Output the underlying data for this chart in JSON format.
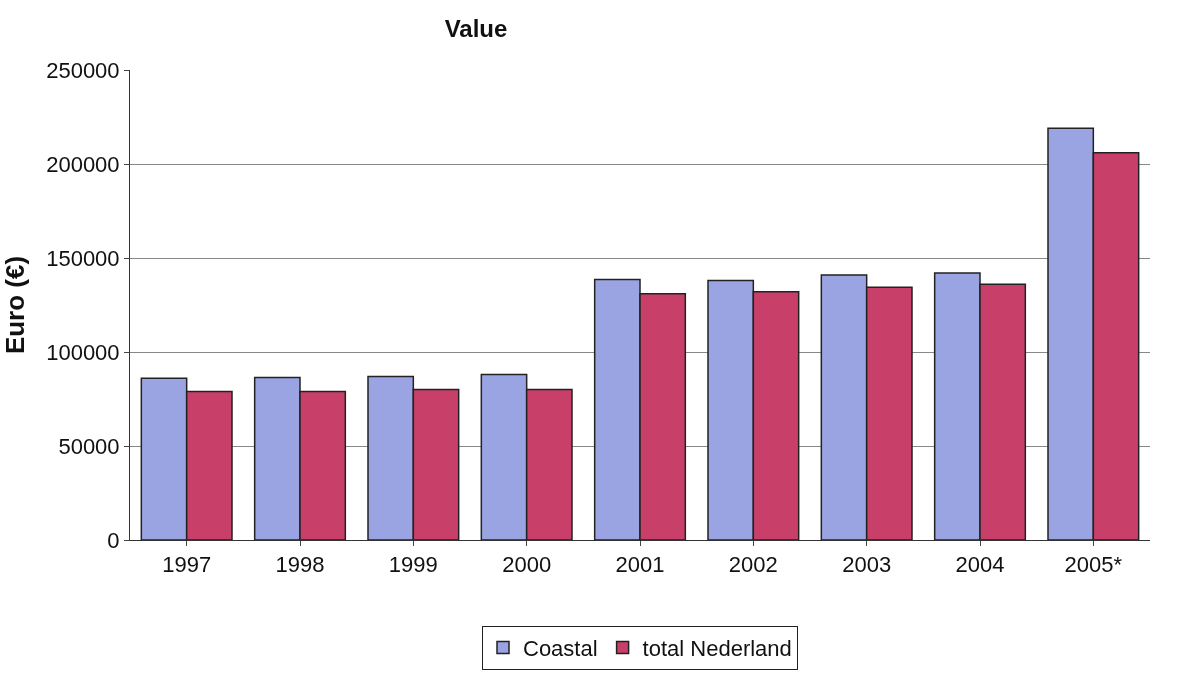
{
  "chart_data": {
    "type": "bar",
    "title": "Value",
    "ylabel": "Euro (€)",
    "categories": [
      "1997",
      "1998",
      "1999",
      "2000",
      "2001",
      "2002",
      "2003",
      "2004",
      "2005*"
    ],
    "series": [
      {
        "name": "Coastal",
        "color": "#9aa4e2",
        "values": [
          86000,
          86500,
          87000,
          88000,
          138500,
          138000,
          141000,
          142000,
          219000
        ]
      },
      {
        "name": "total Nederland",
        "color": "#c8406a",
        "values": [
          79000,
          79000,
          80000,
          80000,
          131000,
          132000,
          134500,
          136000,
          206000
        ]
      }
    ],
    "ylim": [
      0,
      250000
    ],
    "yticks": [
      0,
      50000,
      100000,
      150000,
      200000,
      250000
    ],
    "grid": "y",
    "legend": "bottom"
  }
}
